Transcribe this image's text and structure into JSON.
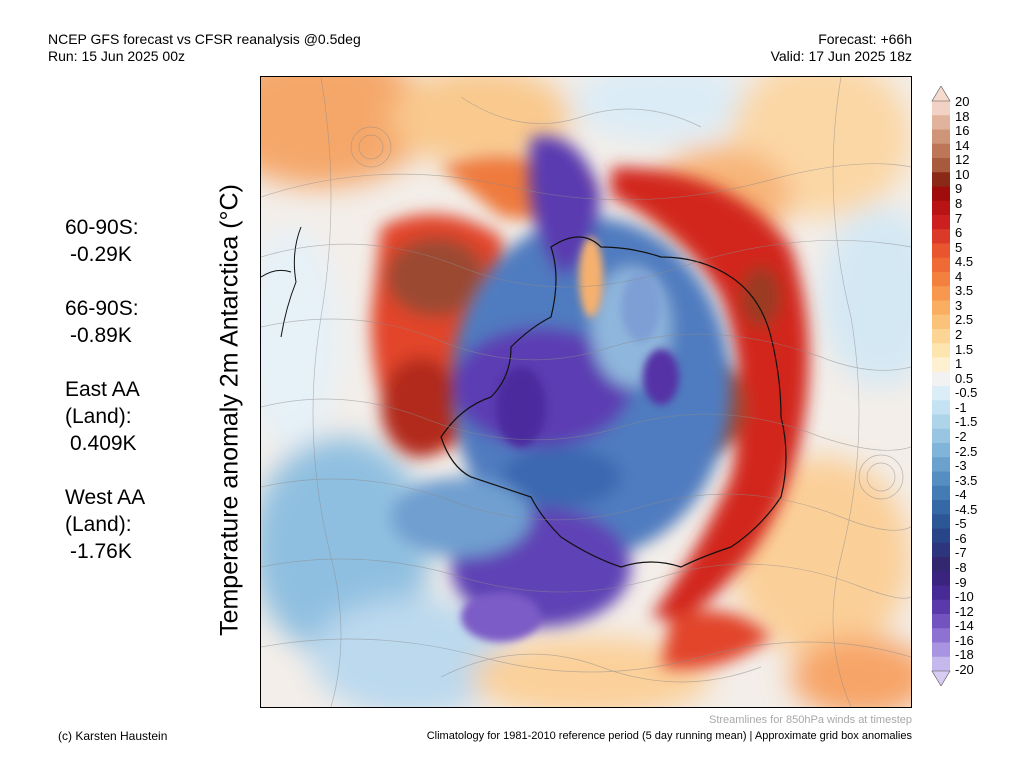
{
  "header": {
    "title": "NCEP GFS forecast vs CFSR reanalysis @0.5deg",
    "run": "Run: 15 Jun 2025 00z",
    "forecast": "Forecast: +66h",
    "valid": "Valid: 17 Jun 2025 18z"
  },
  "stats": [
    {
      "label": "60-90S:",
      "value": "-0.29K"
    },
    {
      "label": "66-90S:",
      "value": "-0.89K"
    },
    {
      "label": "East AA\n(Land):",
      "value": "0.409K"
    },
    {
      "label": "West AA\n(Land):",
      "value": "-1.76K"
    }
  ],
  "axis_title": "Temperature anomaly 2m Antarctica (°C)",
  "colorbar": {
    "labels": [
      "20",
      "18",
      "16",
      "14",
      "12",
      "10",
      "9",
      "8",
      "7",
      "6",
      "5",
      "4.5",
      "4",
      "3.5",
      "3",
      "2.5",
      "2",
      "1.5",
      "1",
      "0.5",
      "-0.5",
      "-1",
      "-1.5",
      "-2",
      "-2.5",
      "-3",
      "-3.5",
      "-4",
      "-4.5",
      "-5",
      "-6",
      "-7",
      "-8",
      "-9",
      "-10",
      "-12",
      "-14",
      "-16",
      "-18",
      "-20"
    ],
    "colors": [
      "#f2d2c4",
      "#e1b39c",
      "#cf9578",
      "#bd7758",
      "#a85a3d",
      "#8a2a16",
      "#9e0c0c",
      "#b81414",
      "#cc2020",
      "#dc3a28",
      "#e8552f",
      "#ef6a35",
      "#f4803f",
      "#f7984e",
      "#f9ae62",
      "#fbc27a",
      "#fcd594",
      "#fde5b0",
      "#fdf1d2",
      "#f2f2f2",
      "#dbeef8",
      "#c4e2f1",
      "#aed4ea",
      "#97c5e2",
      "#80b4d8",
      "#6aa2cd",
      "#558fc1",
      "#437cb4",
      "#3568a6",
      "#2c5797",
      "#28458a",
      "#2d357c",
      "#33286f",
      "#3b2380",
      "#472a95",
      "#5a3aab",
      "#7353c0",
      "#8d72d2",
      "#a894e0",
      "#c4b8ec"
    ],
    "top_arrow": "#f6dacd",
    "bottom_arrow": "#d8ccf2"
  },
  "footer": {
    "credit": "(c) Karsten Haustein",
    "streamlines": "Streamlines for 850hPa winds at timestep",
    "climatology": "Climatology for 1981-2010 reference period (5 day running mean) | Approximate grid box anomalies"
  }
}
